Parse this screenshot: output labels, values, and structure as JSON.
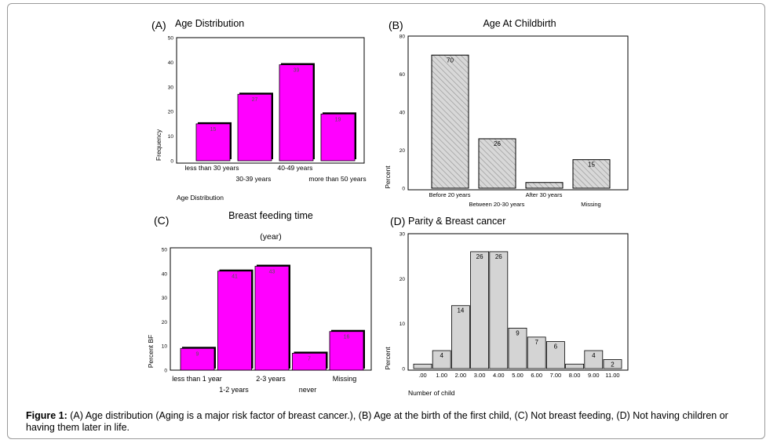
{
  "caption": {
    "label": "Figure 1:",
    "text": " (A) Age distribution (Aging is a major risk factor of breast cancer.), (B) Age at the birth of the first child, (C) Not breast feeding, (D) Not having children or having them later in life."
  },
  "colors": {
    "magenta": "#ff00ff",
    "gray_bar": "#d4d4d4",
    "hatch_fill": "#d8d8d8",
    "axis": "#000000"
  },
  "chart_data": [
    {
      "panel": "(A)",
      "type": "bar",
      "title": "Age Distribution",
      "categories": [
        "less than 30 years",
        "30-39 years",
        "40-49 years",
        "more than 50 years"
      ],
      "values": [
        15,
        27,
        39,
        19
      ],
      "value_labels": [
        "15",
        "27",
        "39",
        "19"
      ],
      "xlabel": "Age Distribution",
      "ylabel": "Frequency",
      "ylim": [
        0,
        50
      ],
      "yticks": [
        "0",
        "10",
        "20",
        "30",
        "40",
        "50"
      ]
    },
    {
      "panel": "(B)",
      "type": "bar",
      "title": "Age At Childbirth",
      "categories": [
        "Before 20 years",
        "Between 20-30 years",
        "After 30 years",
        "Missing"
      ],
      "values": [
        70,
        26,
        3,
        15
      ],
      "value_labels": [
        "70",
        "26",
        "",
        "15"
      ],
      "xlabel": "",
      "ylabel": "Percent",
      "ylim": [
        0,
        80
      ],
      "yticks": [
        "0",
        "20",
        "40",
        "60",
        "80"
      ]
    },
    {
      "panel": "(C)",
      "type": "bar",
      "title": "Breast feeding time",
      "subtitle": "(year)",
      "categories": [
        "less than 1 year",
        "1-2 years",
        "2-3 years",
        "never",
        "Missing"
      ],
      "values": [
        9,
        41,
        43,
        7,
        16
      ],
      "value_labels": [
        "9",
        "41",
        "43",
        "7",
        "16"
      ],
      "xlabel": "",
      "ylabel": "Percent BF",
      "ylim": [
        0,
        50
      ],
      "yticks": [
        "0",
        "10",
        "20",
        "30",
        "40",
        "50"
      ]
    },
    {
      "panel": "(D)",
      "type": "bar",
      "title": "Parity & Breast cancer",
      "categories": [
        ".00",
        "1.00",
        "2.00",
        "3.00",
        "4.00",
        "5.00",
        "6.00",
        "7.00",
        "8.00",
        "9.00",
        "11.00"
      ],
      "values": [
        1,
        4,
        14,
        26,
        26,
        9,
        7,
        6,
        1,
        4,
        2
      ],
      "value_labels": [
        "",
        "4",
        "14",
        "26",
        "26",
        "9",
        "7",
        "6",
        "",
        "4",
        "2"
      ],
      "xlabel": "Number of child",
      "ylabel": "Percent",
      "ylim": [
        0,
        30
      ],
      "yticks": [
        "0",
        "10",
        "20",
        "30"
      ]
    }
  ]
}
